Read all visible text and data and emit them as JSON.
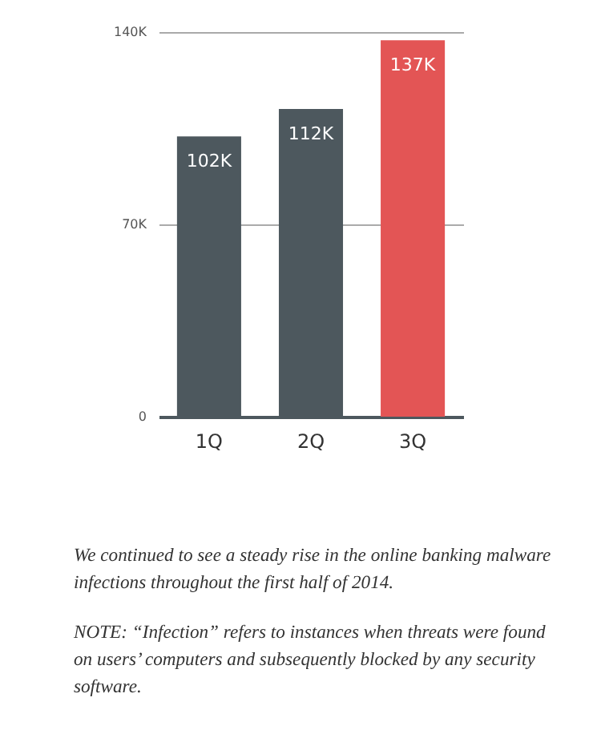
{
  "chart_data": {
    "type": "bar",
    "categories": [
      "1Q",
      "2Q",
      "3Q"
    ],
    "values": [
      102000,
      112000,
      137000
    ],
    "colors": [
      "#4d585e",
      "#4d585e",
      "#e35555"
    ],
    "value_labels": [
      "102K",
      "112K",
      "137K"
    ],
    "ylim": [
      0,
      140000
    ],
    "yticks": [
      {
        "value": 0,
        "label": "0"
      },
      {
        "value": 70000,
        "label": "70K"
      },
      {
        "value": 140000,
        "label": "140K"
      }
    ],
    "grid": "y",
    "annotations": [
      "We continued to see a steady rise in the online banking malware infections throughout the first half of 2014.",
      "NOTE: “Infection” refers to instances when threats were found on users’ computers and subsequently blocked by any security software."
    ]
  }
}
